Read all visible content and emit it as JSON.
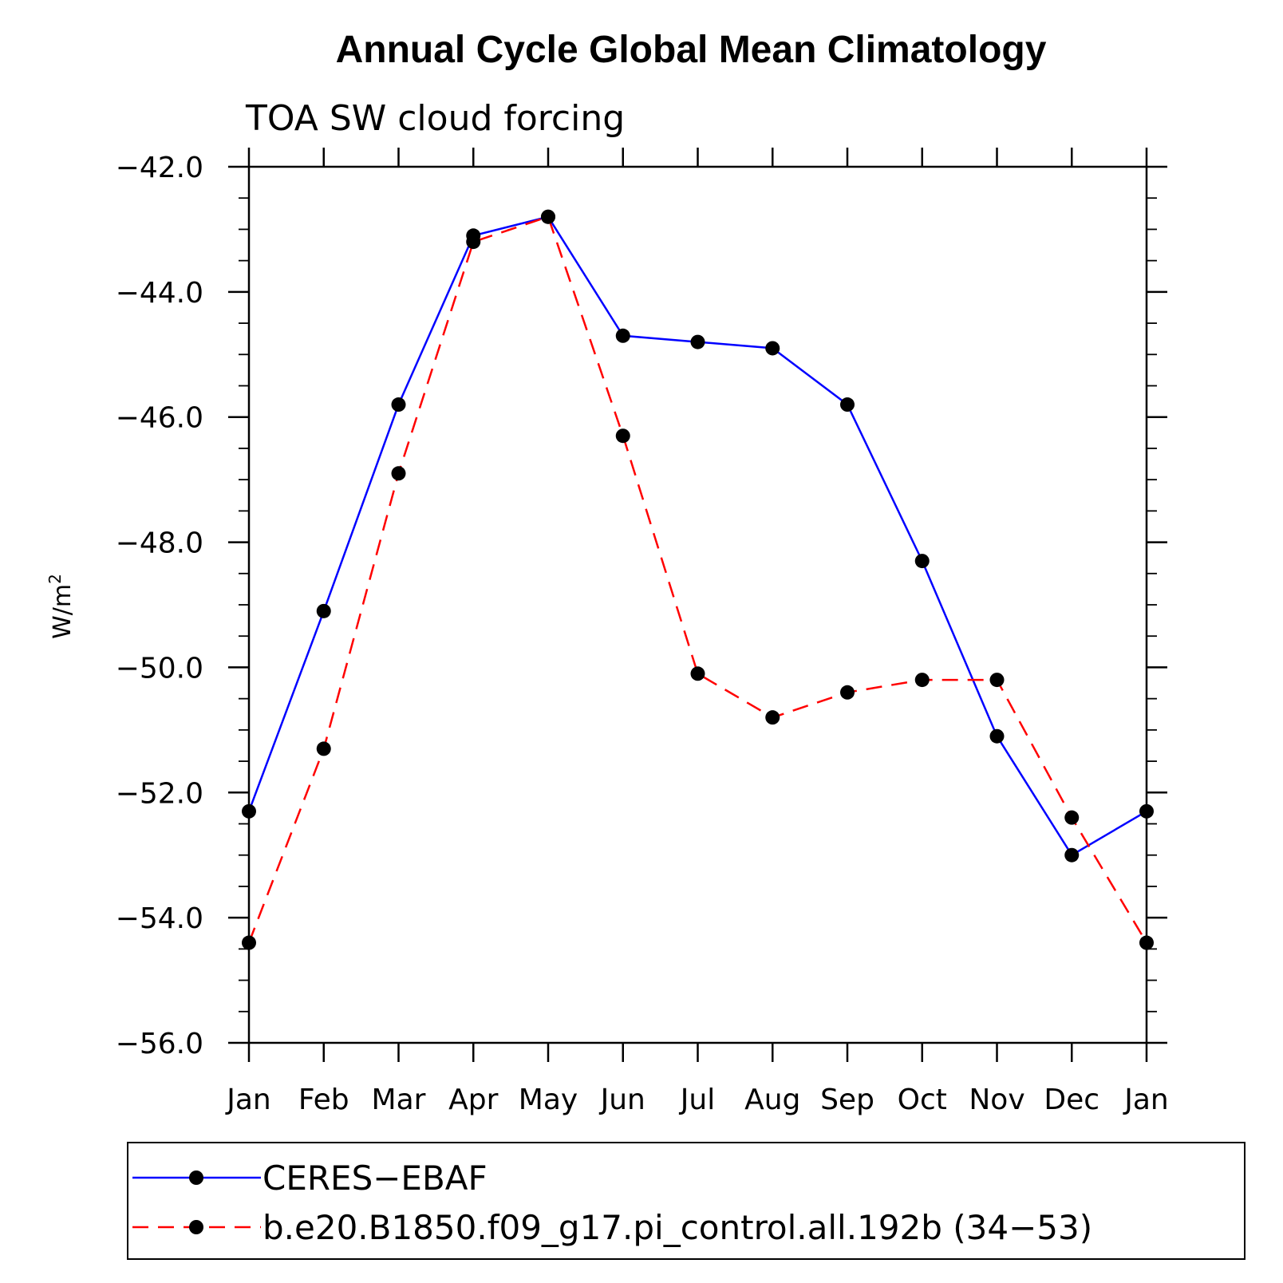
{
  "chart_data": {
    "type": "line",
    "title": "Annual Cycle Global Mean Climatology",
    "subtitle": "TOA SW cloud forcing",
    "ylabel": "W/m",
    "ylabel_superscript": "2",
    "xlabel": "",
    "categories": [
      "Jan",
      "Feb",
      "Mar",
      "Apr",
      "May",
      "Jun",
      "Jul",
      "Aug",
      "Sep",
      "Oct",
      "Nov",
      "Dec",
      "Jan"
    ],
    "ylim": [
      -56.0,
      -42.0
    ],
    "yticks": [
      "-56.0",
      "-54.0",
      "-52.0",
      "-50.0",
      "-48.0",
      "-46.0",
      "-44.0",
      "-42.0"
    ],
    "grid": false,
    "legend_position": "bottom",
    "series": [
      {
        "name": "CERES−EBAF",
        "color": "#0000ff",
        "dash": "solid",
        "marker": "filled-circle",
        "values": [
          -52.3,
          -49.1,
          -45.8,
          -43.1,
          -42.8,
          -44.7,
          -44.8,
          -44.9,
          -45.8,
          -48.3,
          -51.1,
          -53.0,
          -52.3
        ]
      },
      {
        "name": "b.e20.B1850.f09_g17.pi_control.all.192b (34−53)",
        "color": "#ff0000",
        "dash": "dashed",
        "marker": "filled-circle",
        "values": [
          -54.4,
          -51.3,
          -46.9,
          -43.2,
          -42.8,
          -46.3,
          -50.1,
          -50.8,
          -50.4,
          -50.2,
          -50.2,
          -52.4,
          -54.4
        ]
      }
    ]
  }
}
